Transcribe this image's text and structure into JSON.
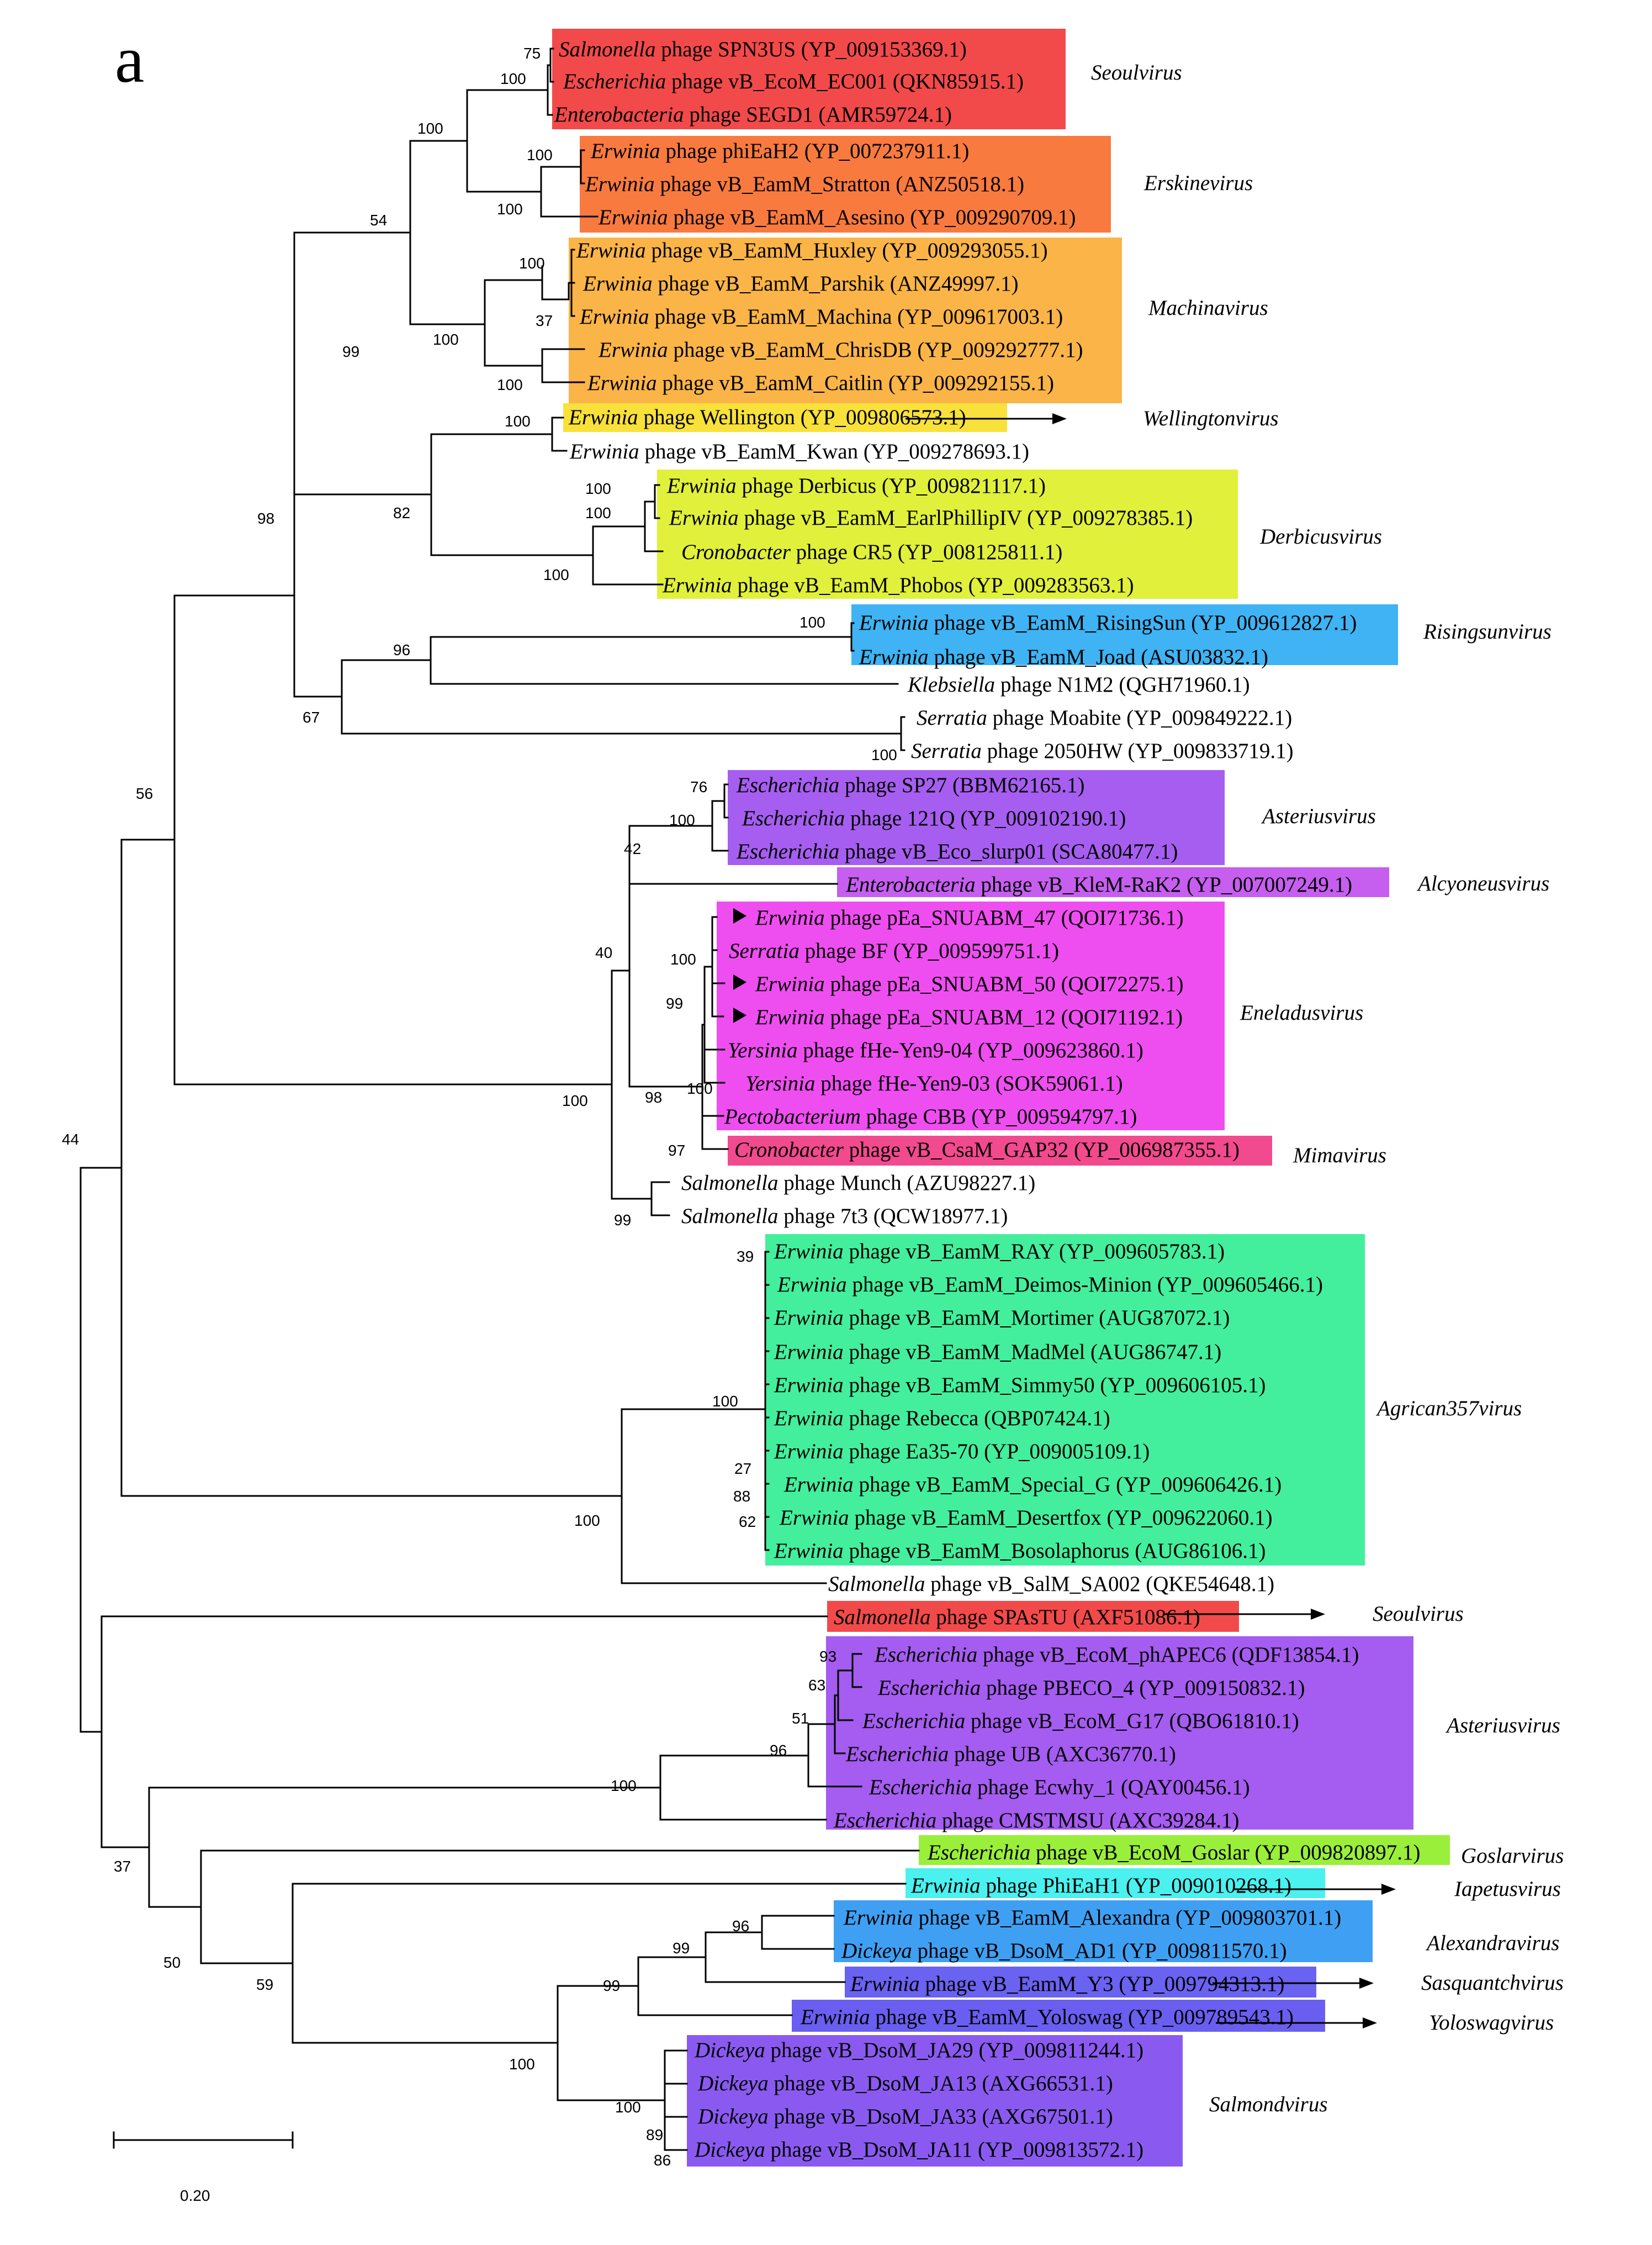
{
  "panel_label": "a",
  "scale_bar": {
    "label": "0.20"
  },
  "colors": {
    "seoul": "#f24a4a",
    "erskine": "#f97a3f",
    "machina": "#fbb448",
    "wellington": "#f8e13a",
    "derbicus": "#e1f03a",
    "risingsun": "#3fb3f3",
    "asterius": "#a65ef0",
    "alcyoneus": "#c65ef0",
    "eneladus": "#ee4ef0",
    "mima": "#f24a8e",
    "agrican": "#43ef9c",
    "asterius2": "#a55cf0",
    "goslar": "#9aef3a",
    "iapetus": "#4bf1ef",
    "alexandra": "#3fa0f3",
    "sasquantch": "#6a62f0",
    "yoloswag": "#6a5ef0",
    "salmond": "#8a5af0"
  },
  "leaves": [
    {
      "id": "L0",
      "genus": "Salmonella",
      "rest": " phage SPN3US (YP_009153369.1)",
      "color": "seoul"
    },
    {
      "id": "L1",
      "genus": "Escherichia",
      "rest": " phage vB_EcoM_EC001 (QKN85915.1)",
      "color": "seoul"
    },
    {
      "id": "L2",
      "genus": "Enterobacteria",
      "rest": " phage SEGD1 (AMR59724.1)",
      "color": "seoul"
    },
    {
      "id": "L3",
      "genus": "Erwinia",
      "rest": " phage phiEaH2 (YP_007237911.1)",
      "color": "erskine"
    },
    {
      "id": "L4",
      "genus": "Erwinia",
      "rest": " phage vB_EamM_Stratton (ANZ50518.1)",
      "color": "erskine"
    },
    {
      "id": "L5",
      "genus": "Erwinia",
      "rest": " phage vB_EamM_Asesino (YP_009290709.1)",
      "color": "erskine"
    },
    {
      "id": "L6",
      "genus": "Erwinia",
      "rest": " phage vB_EamM_Huxley (YP_009293055.1)",
      "color": "machina"
    },
    {
      "id": "L7",
      "genus": "Erwinia",
      "rest": " phage vB_EamM_Parshik (ANZ49997.1)",
      "color": "machina"
    },
    {
      "id": "L8",
      "genus": "Erwinia",
      "rest": " phage vB_EamM_Machina (YP_009617003.1)",
      "color": "machina"
    },
    {
      "id": "L9",
      "genus": "Erwinia",
      "rest": " phage vB_EamM_ChrisDB (YP_009292777.1)",
      "color": "machina"
    },
    {
      "id": "L10",
      "genus": "Erwinia",
      "rest": " phage vB_EamM_Caitlin (YP_009292155.1)",
      "color": "machina"
    },
    {
      "id": "L11",
      "genus": "Erwinia",
      "rest": " phage Wellington (YP_009806573.1)",
      "color": "wellington"
    },
    {
      "id": "L12",
      "genus": "Erwinia",
      "rest": " phage vB_EamM_Kwan (YP_009278693.1)",
      "color": null
    },
    {
      "id": "L13",
      "genus": "Erwinia",
      "rest": " phage Derbicus (YP_009821117.1)",
      "color": "derbicus"
    },
    {
      "id": "L14",
      "genus": "Erwinia",
      "rest": " phage vB_EamM_EarlPhillipIV (YP_009278385.1)",
      "color": "derbicus"
    },
    {
      "id": "L15",
      "genus": "Cronobacter",
      "rest": " phage CR5 (YP_008125811.1)",
      "color": "derbicus"
    },
    {
      "id": "L16",
      "genus": "Erwinia",
      "rest": " phage vB_EamM_Phobos (YP_009283563.1)",
      "color": "derbicus"
    },
    {
      "id": "L17",
      "genus": "Erwinia",
      "rest": " phage vB_EamM_RisingSun (YP_009612827.1)",
      "color": "risingsun"
    },
    {
      "id": "L18",
      "genus": "Erwinia",
      "rest": " phage vB_EamM_Joad (ASU03832.1)",
      "color": "risingsun"
    },
    {
      "id": "L19",
      "genus": "Klebsiella",
      "rest": " phage N1M2 (QGH71960.1)",
      "color": null
    },
    {
      "id": "L20",
      "genus": "Serratia",
      "rest": " phage Moabite (YP_009849222.1)",
      "color": null
    },
    {
      "id": "L21",
      "genus": "Serratia",
      "rest": " phage 2050HW (YP_009833719.1)",
      "color": null
    },
    {
      "id": "L22",
      "genus": "Escherichia",
      "rest": " phage SP27 (BBM62165.1)",
      "color": "asterius"
    },
    {
      "id": "L23",
      "genus": "Escherichia",
      "rest": " phage 121Q (YP_009102190.1)",
      "color": "asterius"
    },
    {
      "id": "L24",
      "genus": "Escherichia",
      "rest": " phage vB_Eco_slurp01 (SCA80477.1)",
      "color": "asterius"
    },
    {
      "id": "L25",
      "genus": "Enterobacteria",
      "rest": " phage vB_KleM-RaK2  (YP_007007249.1)",
      "color": "alcyoneus"
    },
    {
      "id": "L26",
      "genus": "Erwinia",
      "rest": " phage pEa_SNUABM_47 (QOI71736.1)",
      "color": "eneladus",
      "marker": true
    },
    {
      "id": "L27",
      "genus": "Serratia",
      "rest": " phage BF (YP_009599751.1)",
      "color": "eneladus"
    },
    {
      "id": "L28",
      "genus": "Erwinia",
      "rest": " phage pEa_SNUABM_50 (QOI72275.1)",
      "color": "eneladus",
      "marker": true
    },
    {
      "id": "L29",
      "genus": "Erwinia",
      "rest": " phage pEa_SNUABM_12 (QOI71192.1)",
      "color": "eneladus",
      "marker": true
    },
    {
      "id": "L30",
      "genus": "Yersinia",
      "rest": " phage fHe-Yen9-04 (YP_009623860.1)",
      "color": "eneladus"
    },
    {
      "id": "L31",
      "genus": "Yersinia",
      "rest": " phage fHe-Yen9-03 (SOK59061.1)",
      "color": "eneladus"
    },
    {
      "id": "L32",
      "genus": "Pectobacterium",
      "rest": " phage CBB (YP_009594797.1)",
      "color": "eneladus"
    },
    {
      "id": "L33",
      "genus": "Cronobacter",
      "rest": " phage vB_CsaM_GAP32 (YP_006987355.1)",
      "color": "mima"
    },
    {
      "id": "L34",
      "genus": "Salmonella",
      "rest": " phage Munch (AZU98227.1)",
      "color": null
    },
    {
      "id": "L35",
      "genus": "Salmonella",
      "rest": " phage 7t3 (QCW18977.1)",
      "color": null
    },
    {
      "id": "L36",
      "genus": "Erwinia",
      "rest": " phage vB_EamM_RAY (YP_009605783.1)",
      "color": "agrican"
    },
    {
      "id": "L37",
      "genus": "Erwinia",
      "rest": " phage vB_EamM_Deimos-Minion (YP_009605466.1)",
      "color": "agrican"
    },
    {
      "id": "L38",
      "genus": "Erwinia",
      "rest": " phage vB_EamM_Mortimer (AUG87072.1)",
      "color": "agrican"
    },
    {
      "id": "L39",
      "genus": "Erwinia",
      "rest": " phage vB_EamM_MadMel (AUG86747.1)",
      "color": "agrican"
    },
    {
      "id": "L40",
      "genus": "Erwinia",
      "rest": " phage vB_EamM_Simmy50 (YP_009606105.1)",
      "color": "agrican"
    },
    {
      "id": "L41",
      "genus": "Erwinia",
      "rest": " phage Rebecca (QBP07424.1)",
      "color": "agrican"
    },
    {
      "id": "L42",
      "genus": "Erwinia",
      "rest": " phage Ea35-70 (YP_009005109.1)",
      "color": "agrican"
    },
    {
      "id": "L43",
      "genus": "Erwinia",
      "rest": " phage vB_EamM_Special_G (YP_009606426.1)",
      "color": "agrican"
    },
    {
      "id": "L44",
      "genus": "Erwinia",
      "rest": " phage vB_EamM_Desertfox (YP_009622060.1)",
      "color": "agrican"
    },
    {
      "id": "L45",
      "genus": "Erwinia",
      "rest": " phage vB_EamM_Bosolaphorus (AUG86106.1)",
      "color": "agrican"
    },
    {
      "id": "L46",
      "genus": "Salmonella",
      "rest": " phage vB_SalM_SA002 (QKE54648.1)",
      "color": null
    },
    {
      "id": "L47",
      "genus": "Salmonella",
      "rest": " phage SPAsTU (AXF51086.1)",
      "color": "seoul"
    },
    {
      "id": "L48",
      "genus": "Escherichia",
      "rest": " phage vB_EcoM_phAPEC6 (QDF13854.1)",
      "color": "asterius2"
    },
    {
      "id": "L49",
      "genus": "Escherichia",
      "rest": " phage PBECO_4 (YP_009150832.1)",
      "color": "asterius2"
    },
    {
      "id": "L50",
      "genus": "Escherichia",
      "rest": " phage vB_EcoM_G17 (QBO61810.1)",
      "color": "asterius2"
    },
    {
      "id": "L51",
      "genus": "Escherichia",
      "rest": " phage UB (AXC36770.1)",
      "color": "asterius2"
    },
    {
      "id": "L52",
      "genus": "Escherichia",
      "rest": " phage Ecwhy_1 (QAY00456.1)",
      "color": "asterius2"
    },
    {
      "id": "L53",
      "genus": "Escherichia",
      "rest": " phage CMSTMSU (AXC39284.1)",
      "color": "asterius2"
    },
    {
      "id": "L54",
      "genus": "Escherichia",
      "rest": " phage vB_EcoM_Goslar (YP_009820897.1)",
      "color": "goslar"
    },
    {
      "id": "L55",
      "genus": "Erwinia",
      "rest": " phage PhiEaH1 (YP_009010268.1)",
      "color": "iapetus"
    },
    {
      "id": "L56",
      "genus": "Erwinia",
      "rest": " phage vB_EamM_Alexandra (YP_009803701.1)",
      "color": "alexandra"
    },
    {
      "id": "L57",
      "genus": "Dickeya",
      "rest": " phage vB_DsoM_AD1 (YP_009811570.1)",
      "color": "alexandra"
    },
    {
      "id": "L58",
      "genus": "Erwinia",
      "rest": " phage vB_EamM_Y3 (YP_009794313.1)",
      "color": "sasquantch"
    },
    {
      "id": "L59",
      "genus": "Erwinia",
      "rest": " phage vB_EamM_Yoloswag (YP_009789543.1)",
      "color": "yoloswag"
    },
    {
      "id": "L60",
      "genus": "Dickeya",
      "rest": " phage vB_DsoM_JA29 (YP_009811244.1)",
      "color": "salmond"
    },
    {
      "id": "L61",
      "genus": "Dickeya",
      "rest": " phage vB_DsoM_JA13 (AXG66531.1)",
      "color": "salmond"
    },
    {
      "id": "L62",
      "genus": "Dickeya",
      "rest": " phage vB_DsoM_JA33 (AXG67501.1)",
      "color": "salmond"
    },
    {
      "id": "L63",
      "genus": "Dickeya",
      "rest": " phage vB_DsoM_JA11 (YP_009813572.1)",
      "color": "salmond"
    }
  ],
  "genera": [
    {
      "name": "Seoulvirus",
      "arrow": false
    },
    {
      "name": "Erskinevirus",
      "arrow": false
    },
    {
      "name": "Machinavirus",
      "arrow": false
    },
    {
      "name": "Wellingtonvirus",
      "arrow": true
    },
    {
      "name": "Derbicusvirus",
      "arrow": false
    },
    {
      "name": "Risingsunvirus",
      "arrow": false
    },
    {
      "name": "Asteriusvirus",
      "arrow": false
    },
    {
      "name": "Alcyoneusvirus",
      "arrow": false
    },
    {
      "name": "Eneladusvirus",
      "arrow": false
    },
    {
      "name": "Mimavirus",
      "arrow": false
    },
    {
      "name": "Agrican357virus",
      "arrow": false
    },
    {
      "name": "Seoulvirus",
      "arrow": true
    },
    {
      "name": "Asteriusvirus",
      "arrow": false
    },
    {
      "name": "Goslarvirus",
      "arrow": false
    },
    {
      "name": "Iapetusvirus",
      "arrow": true
    },
    {
      "name": "Alexandravirus",
      "arrow": false
    },
    {
      "name": "Sasquantchvirus",
      "arrow": true
    },
    {
      "name": "Yoloswagvirus",
      "arrow": true
    },
    {
      "name": "Salmondvirus",
      "arrow": false
    }
  ],
  "bootstrap": [
    "75",
    "100",
    "100",
    "100",
    "100",
    "54",
    "100",
    "37",
    "100",
    "100",
    "99",
    "100",
    "82",
    "100",
    "100",
    "100",
    "98",
    "100",
    "96",
    "67",
    "100",
    "56",
    "76",
    "100",
    "42",
    "40",
    "100",
    "99",
    "100",
    "98",
    "100",
    "97",
    "99",
    "44",
    "39",
    "100",
    "27",
    "88",
    "62",
    "100",
    "93",
    "63",
    "51",
    "96",
    "100",
    "37",
    "96",
    "99",
    "99",
    "50",
    "59",
    "100",
    "100",
    "89",
    "86"
  ]
}
